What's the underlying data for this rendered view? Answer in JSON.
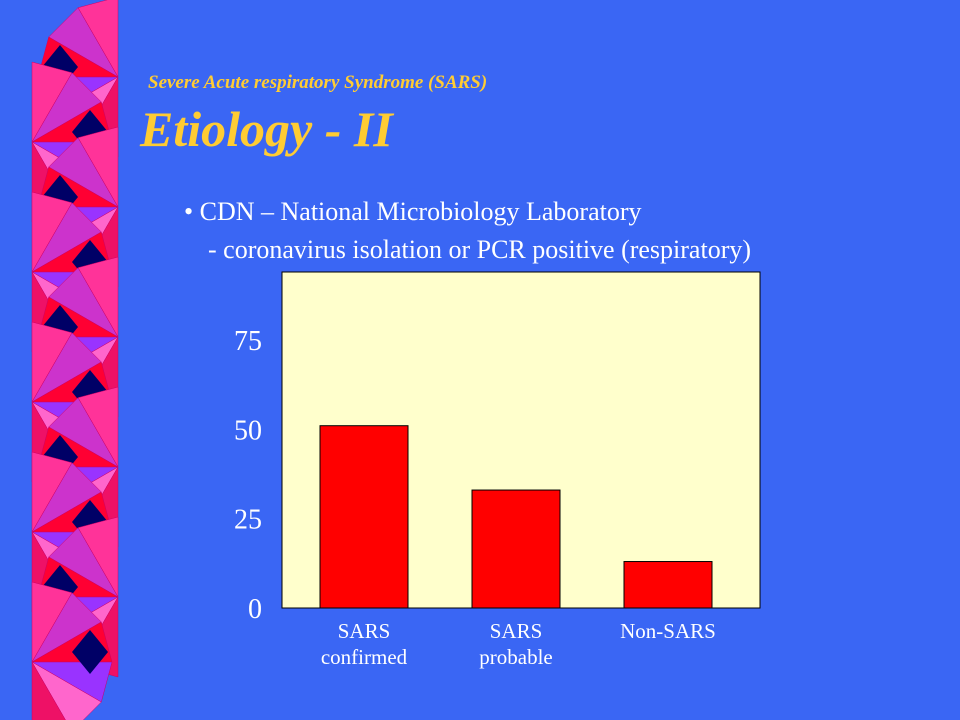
{
  "chart_data": {
    "type": "bar",
    "subtitle": "Severe Acute respiratory Syndrome (SARS)",
    "title": "Etiology - II",
    "bullets": [
      "• CDN – National Microbiology Laboratory",
      "- coronavirus isolation or PCR positive (respiratory)"
    ],
    "categories": [
      "SARS confirmed",
      "SARS probable",
      "Non-SARS"
    ],
    "values": [
      51,
      33,
      13
    ],
    "color": "#ff0000",
    "ylim": [
      0,
      94
    ],
    "yticks": [
      0,
      25,
      50,
      75
    ],
    "grid": false
  }
}
